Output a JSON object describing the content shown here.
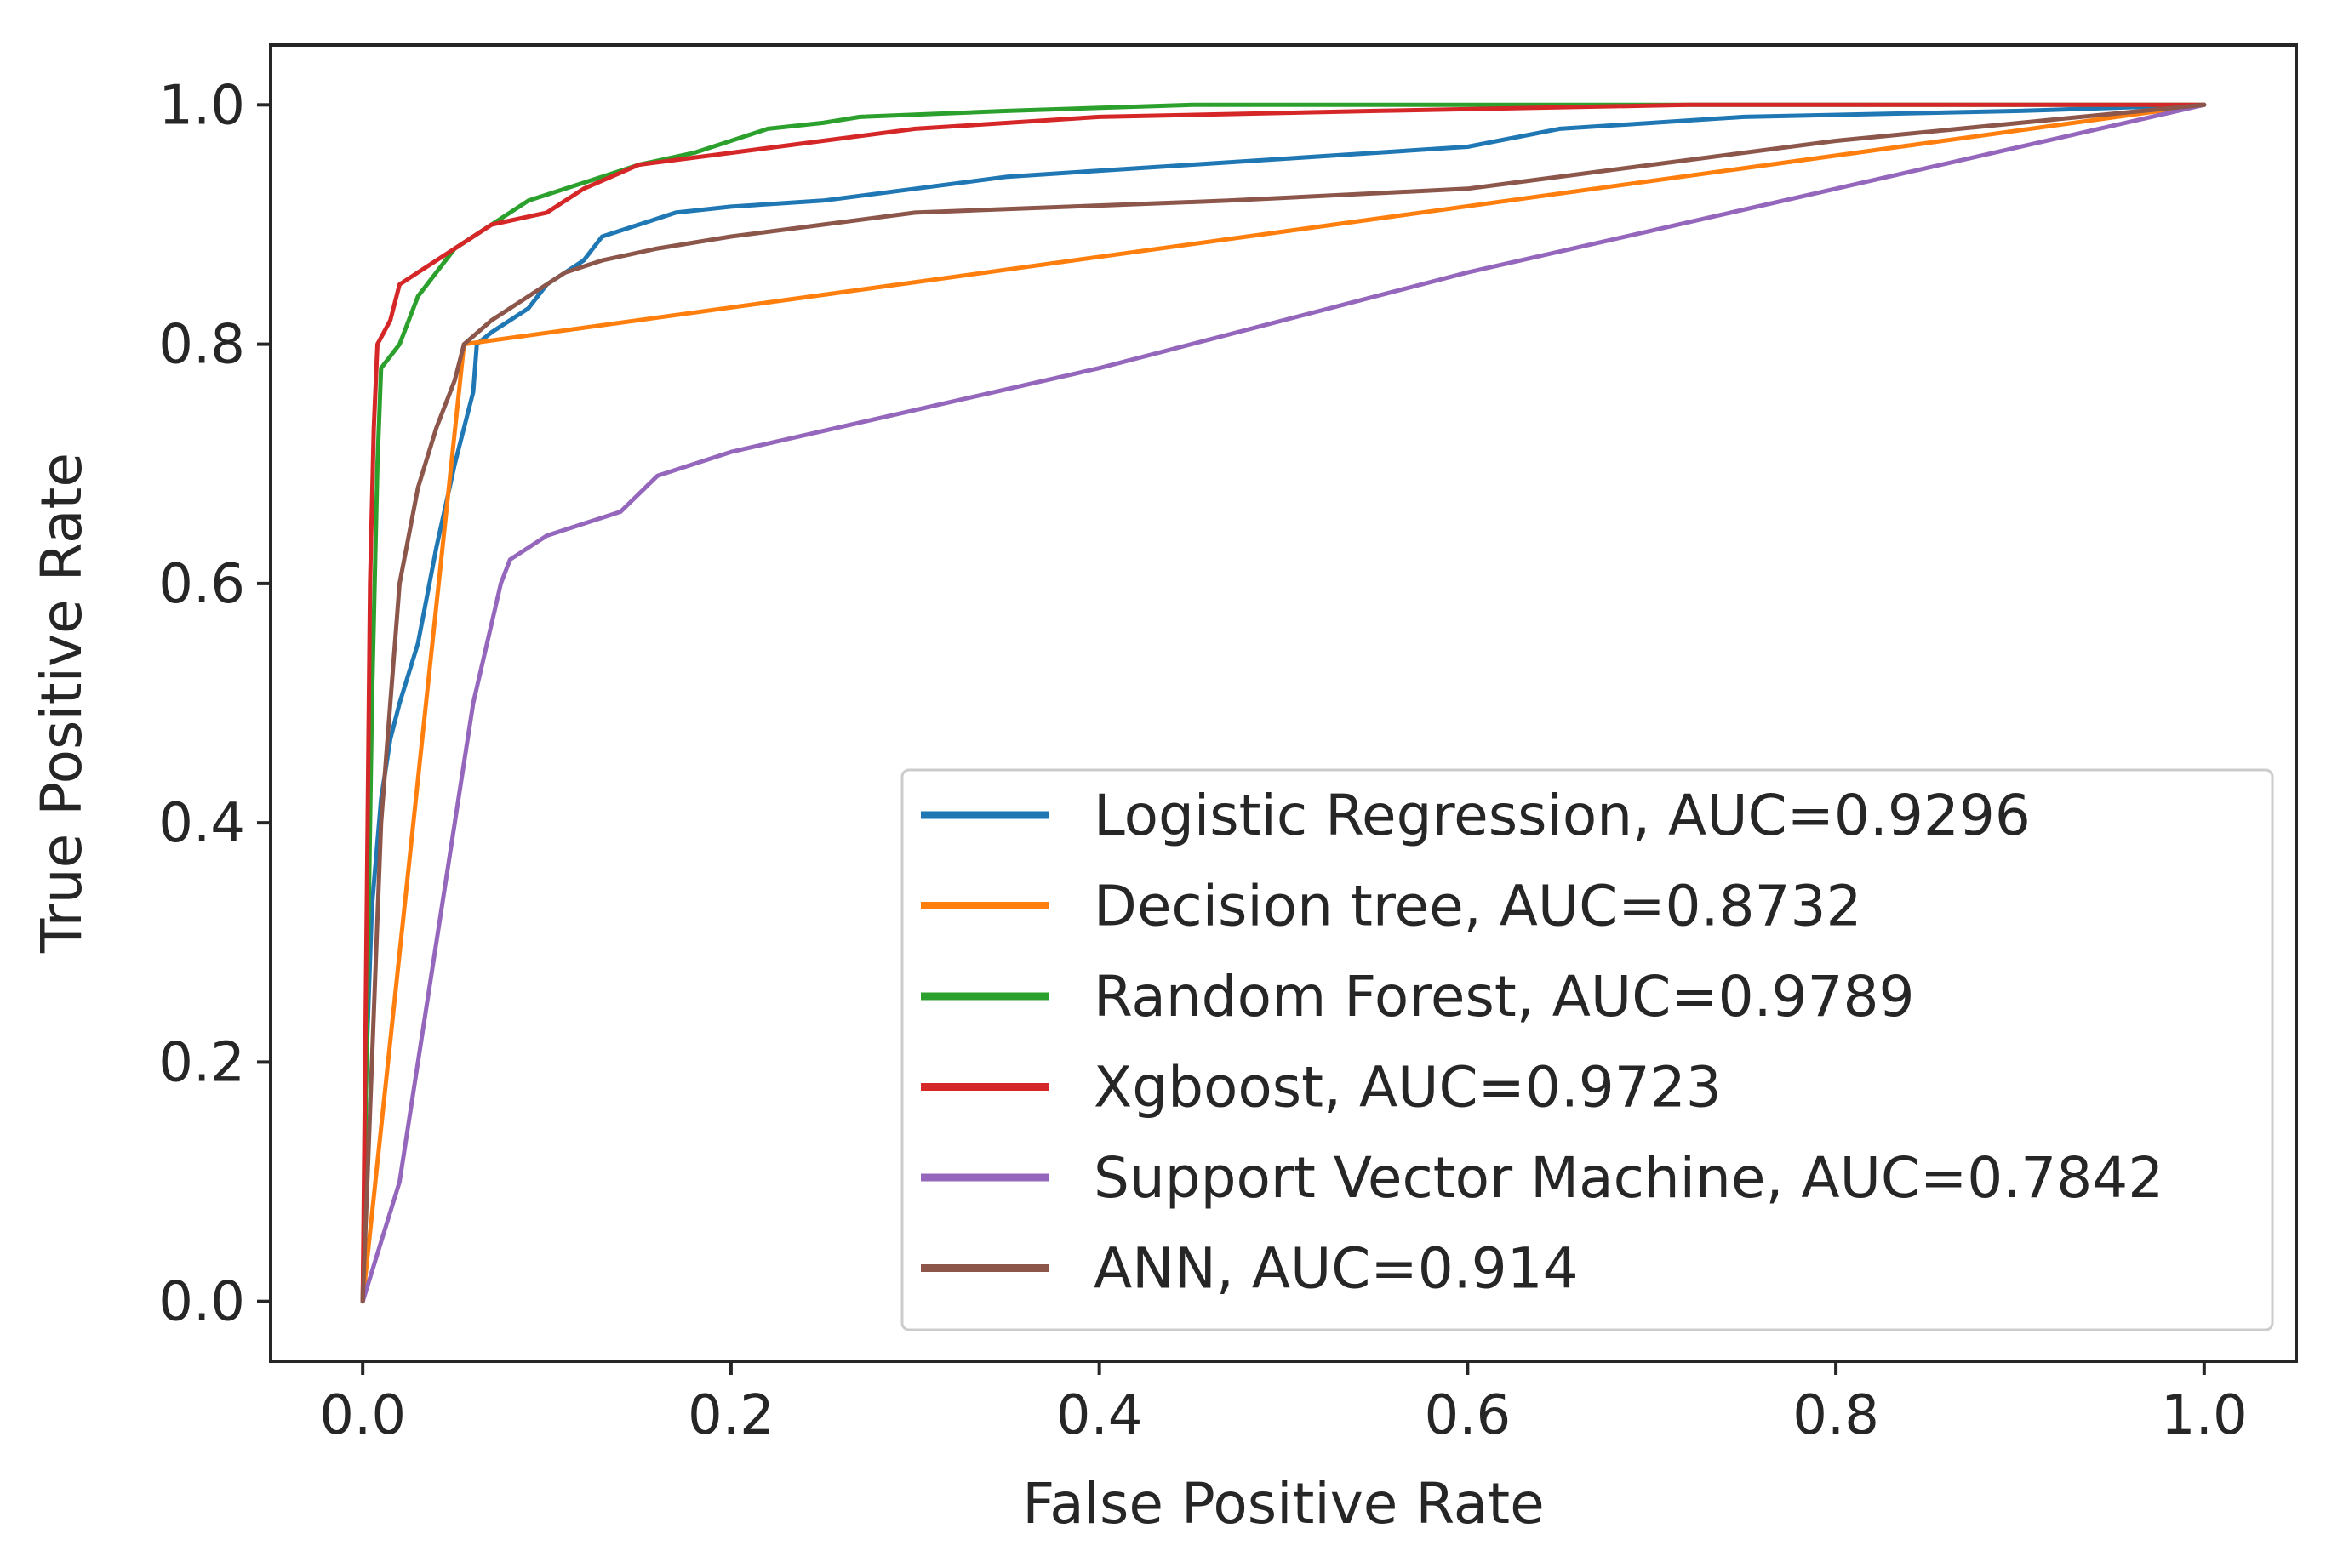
{
  "chart_data": {
    "type": "line",
    "title": "",
    "xlabel": "False Positive Rate",
    "ylabel": "True Positive Rate",
    "xlim": [
      -0.05,
      1.05
    ],
    "ylim": [
      -0.05,
      1.05
    ],
    "xticks": [
      0.0,
      0.2,
      0.4,
      0.6,
      0.8,
      1.0
    ],
    "xtick_labels": [
      "0.0",
      "0.2",
      "0.4",
      "0.6",
      "0.8",
      "1.0"
    ],
    "yticks": [
      0.0,
      0.2,
      0.4,
      0.6,
      0.8,
      1.0
    ],
    "ytick_labels": [
      "0.0",
      "0.2",
      "0.4",
      "0.6",
      "0.8",
      "1.0"
    ],
    "grid": false,
    "legend_position": "lower-right",
    "series": [
      {
        "name": "Logistic Regression",
        "label": "Logistic Regression, AUC=0.9296",
        "color": "#1f77b4",
        "points": [
          [
            0,
            0
          ],
          [
            0.002,
            0.2
          ],
          [
            0.005,
            0.33
          ],
          [
            0.01,
            0.42
          ],
          [
            0.015,
            0.47
          ],
          [
            0.02,
            0.5
          ],
          [
            0.03,
            0.55
          ],
          [
            0.04,
            0.63
          ],
          [
            0.05,
            0.7
          ],
          [
            0.055,
            0.73
          ],
          [
            0.06,
            0.76
          ],
          [
            0.062,
            0.8
          ],
          [
            0.07,
            0.81
          ],
          [
            0.08,
            0.82
          ],
          [
            0.09,
            0.83
          ],
          [
            0.1,
            0.85
          ],
          [
            0.11,
            0.86
          ],
          [
            0.12,
            0.87
          ],
          [
            0.13,
            0.89
          ],
          [
            0.15,
            0.9
          ],
          [
            0.17,
            0.91
          ],
          [
            0.2,
            0.915
          ],
          [
            0.25,
            0.92
          ],
          [
            0.3,
            0.93
          ],
          [
            0.35,
            0.94
          ],
          [
            0.45,
            0.95
          ],
          [
            0.5,
            0.955
          ],
          [
            0.6,
            0.965
          ],
          [
            0.65,
            0.98
          ],
          [
            0.75,
            0.99
          ],
          [
            0.9,
            0.995
          ],
          [
            1.0,
            1.0
          ]
        ]
      },
      {
        "name": "Decision tree",
        "label": "Decision tree, AUC=0.8732",
        "color": "#ff7f0e",
        "points": [
          [
            0,
            0
          ],
          [
            0.055,
            0.8
          ],
          [
            1.0,
            1.0
          ]
        ]
      },
      {
        "name": "Random Forest",
        "label": "Random Forest, AUC=0.9789",
        "color": "#2ca02c",
        "points": [
          [
            0,
            0
          ],
          [
            0.002,
            0.2
          ],
          [
            0.005,
            0.5
          ],
          [
            0.008,
            0.7
          ],
          [
            0.01,
            0.78
          ],
          [
            0.02,
            0.8
          ],
          [
            0.03,
            0.84
          ],
          [
            0.04,
            0.86
          ],
          [
            0.05,
            0.88
          ],
          [
            0.07,
            0.9
          ],
          [
            0.09,
            0.92
          ],
          [
            0.11,
            0.93
          ],
          [
            0.13,
            0.94
          ],
          [
            0.15,
            0.95
          ],
          [
            0.18,
            0.96
          ],
          [
            0.2,
            0.97
          ],
          [
            0.22,
            0.98
          ],
          [
            0.25,
            0.985
          ],
          [
            0.27,
            0.99
          ],
          [
            0.35,
            0.995
          ],
          [
            0.45,
            1.0
          ],
          [
            1.0,
            1.0
          ]
        ]
      },
      {
        "name": "Xgboost",
        "label": "Xgboost, AUC=0.9723",
        "color": "#d62728",
        "points": [
          [
            0,
            0
          ],
          [
            0.002,
            0.3
          ],
          [
            0.004,
            0.6
          ],
          [
            0.006,
            0.73
          ],
          [
            0.008,
            0.8
          ],
          [
            0.015,
            0.82
          ],
          [
            0.02,
            0.85
          ],
          [
            0.03,
            0.86
          ],
          [
            0.05,
            0.88
          ],
          [
            0.07,
            0.9
          ],
          [
            0.1,
            0.91
          ],
          [
            0.12,
            0.93
          ],
          [
            0.15,
            0.95
          ],
          [
            0.2,
            0.96
          ],
          [
            0.25,
            0.97
          ],
          [
            0.3,
            0.98
          ],
          [
            0.4,
            0.99
          ],
          [
            0.55,
            0.995
          ],
          [
            0.72,
            1.0
          ],
          [
            1.0,
            1.0
          ]
        ]
      },
      {
        "name": "Support Vector Machine",
        "label": "Support Vector Machine, AUC=0.7842",
        "color": "#9467bd",
        "points": [
          [
            0,
            0
          ],
          [
            0.02,
            0.1
          ],
          [
            0.04,
            0.3
          ],
          [
            0.06,
            0.5
          ],
          [
            0.075,
            0.6
          ],
          [
            0.08,
            0.62
          ],
          [
            0.1,
            0.64
          ],
          [
            0.12,
            0.65
          ],
          [
            0.14,
            0.66
          ],
          [
            0.16,
            0.69
          ],
          [
            0.2,
            0.71
          ],
          [
            0.4,
            0.78
          ],
          [
            0.6,
            0.86
          ],
          [
            0.8,
            0.93
          ],
          [
            1.0,
            1.0
          ]
        ]
      },
      {
        "name": "ANN",
        "label": "ANN, AUC=0.914",
        "color": "#8c564b",
        "points": [
          [
            0,
            0
          ],
          [
            0.005,
            0.2
          ],
          [
            0.01,
            0.4
          ],
          [
            0.015,
            0.5
          ],
          [
            0.02,
            0.6
          ],
          [
            0.03,
            0.68
          ],
          [
            0.04,
            0.73
          ],
          [
            0.05,
            0.77
          ],
          [
            0.055,
            0.8
          ],
          [
            0.07,
            0.82
          ],
          [
            0.09,
            0.84
          ],
          [
            0.11,
            0.86
          ],
          [
            0.13,
            0.87
          ],
          [
            0.16,
            0.88
          ],
          [
            0.2,
            0.89
          ],
          [
            0.25,
            0.9
          ],
          [
            0.3,
            0.91
          ],
          [
            0.47,
            0.92
          ],
          [
            0.6,
            0.93
          ],
          [
            0.7,
            0.95
          ],
          [
            0.8,
            0.97
          ],
          [
            0.9,
            0.985
          ],
          [
            1.0,
            1.0
          ]
        ]
      }
    ]
  }
}
